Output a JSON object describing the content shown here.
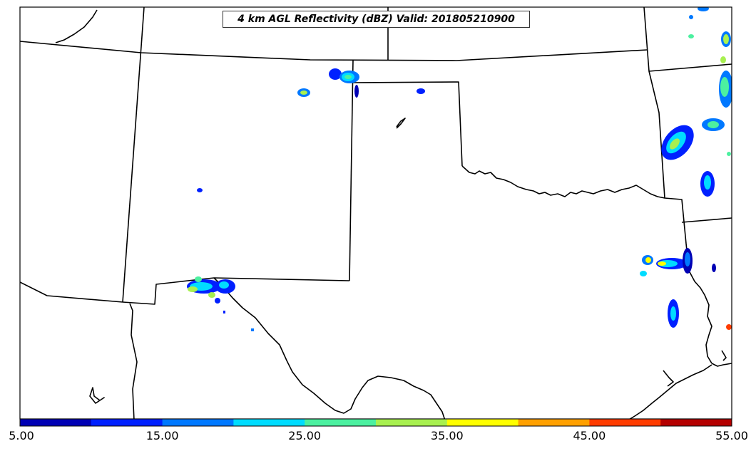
{
  "title": "4 km AGL Reflectivity (dBZ) Valid: 201805210900",
  "colorbar": {
    "colors": [
      "#0000b4",
      "#0020ff",
      "#0078ff",
      "#00dcff",
      "#4cf0a0",
      "#a8f050",
      "#ffff00",
      "#ffa000",
      "#ff3c00",
      "#b40000"
    ],
    "tick_labels": [
      "5.00",
      "15.00",
      "25.00",
      "35.00",
      "45.00",
      "55.00"
    ],
    "range": [
      5,
      55
    ]
  },
  "legend_scale_bin_width_dbz": 5
}
